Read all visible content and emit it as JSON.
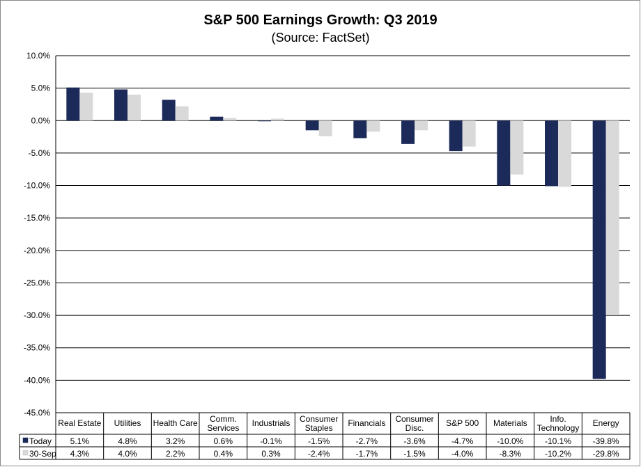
{
  "chart_data": {
    "type": "bar",
    "title": "S&P 500 Earnings Growth: Q3 2019",
    "subtitle": "(Source: FactSet)",
    "xlabel": "",
    "ylabel": "",
    "ylim": [
      -45,
      10
    ],
    "ytick_step": 5,
    "ytick_labels": [
      "10.0%",
      "5.0%",
      "0.0%",
      "-5.0%",
      "-10.0%",
      "-15.0%",
      "-20.0%",
      "-25.0%",
      "-30.0%",
      "-35.0%",
      "-40.0%",
      "-45.0%"
    ],
    "grid": true,
    "categories": [
      [
        "Real Estate"
      ],
      [
        "Utilities"
      ],
      [
        "Health Care"
      ],
      [
        "Comm.",
        "Services"
      ],
      [
        "Industrials"
      ],
      [
        "Consumer",
        "Staples"
      ],
      [
        "Financials"
      ],
      [
        "Consumer",
        "Disc."
      ],
      [
        "S&P 500"
      ],
      [
        "Materials"
      ],
      [
        "Info.",
        "Technology"
      ],
      [
        "Energy"
      ]
    ],
    "series": [
      {
        "name": "Today",
        "color": "#1b2a59",
        "values": [
          5.1,
          4.8,
          3.2,
          0.6,
          -0.1,
          -1.5,
          -2.7,
          -3.6,
          -4.7,
          -10.0,
          -10.1,
          -39.8
        ],
        "labels": [
          "5.1%",
          "4.8%",
          "3.2%",
          "0.6%",
          "-0.1%",
          "-1.5%",
          "-2.7%",
          "-3.6%",
          "-4.7%",
          "-10.0%",
          "-10.1%",
          "-39.8%"
        ]
      },
      {
        "name": "30-Sep",
        "color": "#d9d9d9",
        "values": [
          4.3,
          4.0,
          2.2,
          0.4,
          0.3,
          -2.4,
          -1.7,
          -1.5,
          -4.0,
          -8.3,
          -10.2,
          -29.8
        ],
        "labels": [
          "4.3%",
          "4.0%",
          "2.2%",
          "0.4%",
          "0.3%",
          "-2.4%",
          "-1.7%",
          "-1.5%",
          "-4.0%",
          "-8.3%",
          "-10.2%",
          "-29.8%"
        ]
      }
    ],
    "data_table": true,
    "legend": "data-table-left"
  }
}
